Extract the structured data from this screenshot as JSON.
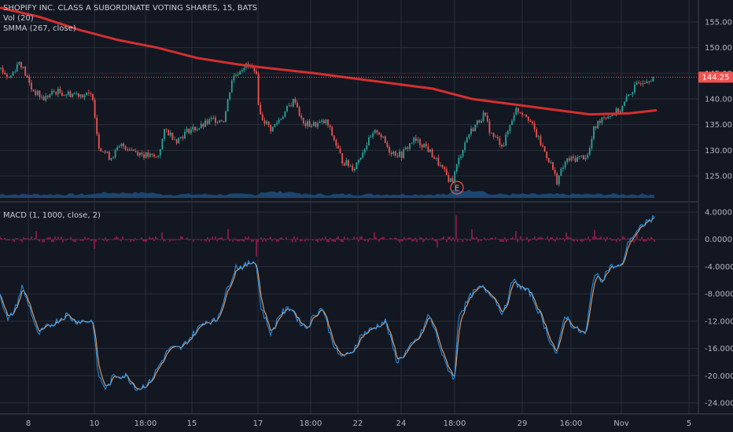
{
  "legend": {
    "title": "SHOPIFY INC. CLASS A SUBORDINATE VOTING SHARES, 15, BATS",
    "vol": "Vol (20)",
    "smma": "SMMA (267, close)",
    "macd": "MACD (1, 1000, close, 2)"
  },
  "earnings_marker": "E",
  "colors": {
    "background": "#131722",
    "grid": "#2a2e39",
    "up": "#26a69a",
    "down": "#ef5350",
    "smma": "#d32f2f",
    "volume": "#1e4f7a",
    "macd_line": "#2196f3",
    "signal_line": "#d49a6a",
    "histogram": "#e91e63",
    "price_tag": "#ef5350"
  },
  "chart_data": [
    {
      "type": "line",
      "name": "price-pane",
      "symbol": "SHOPIFY INC. CLASS A SUBORDINATE VOTING SHARES",
      "ylim": [
        121,
        157
      ],
      "yticks": [
        "125.00",
        "130.00",
        "135.00",
        "140.00",
        "145.00",
        "150.00",
        "155.00"
      ],
      "xticks": [
        "8",
        "10",
        "18:00",
        "15",
        "17",
        "18:00",
        "22",
        "24",
        "18:00",
        "29",
        "16:00",
        "Nov",
        "5"
      ],
      "last_price": "144.25",
      "close_path": [
        [
          0,
          146
        ],
        [
          12,
          144
        ],
        [
          25,
          147.5
        ],
        [
          40,
          142
        ],
        [
          55,
          140
        ],
        [
          70,
          141.5
        ],
        [
          85,
          141
        ],
        [
          100,
          141
        ],
        [
          118,
          140.5
        ],
        [
          125,
          131
        ],
        [
          140,
          128.5
        ],
        [
          155,
          131
        ],
        [
          170,
          130
        ],
        [
          185,
          129
        ],
        [
          200,
          128.5
        ],
        [
          210,
          134
        ],
        [
          225,
          132
        ],
        [
          240,
          134
        ],
        [
          255,
          134.5
        ],
        [
          270,
          136
        ],
        [
          285,
          136
        ],
        [
          295,
          144
        ],
        [
          310,
          146.5
        ],
        [
          325,
          146
        ],
        [
          330,
          137
        ],
        [
          345,
          134
        ],
        [
          360,
          137
        ],
        [
          375,
          140
        ],
        [
          385,
          135
        ],
        [
          400,
          135
        ],
        [
          415,
          135.5
        ],
        [
          425,
          132
        ],
        [
          435,
          128
        ],
        [
          450,
          126.5
        ],
        [
          465,
          131
        ],
        [
          480,
          134
        ],
        [
          495,
          130
        ],
        [
          510,
          129
        ],
        [
          525,
          132
        ],
        [
          540,
          131
        ],
        [
          555,
          128
        ],
        [
          570,
          124.5
        ],
        [
          575,
          124
        ],
        [
          585,
          129
        ],
        [
          595,
          133
        ],
        [
          605,
          135
        ],
        [
          615,
          137
        ],
        [
          625,
          133
        ],
        [
          640,
          131
        ],
        [
          655,
          138
        ],
        [
          670,
          137
        ],
        [
          685,
          132
        ],
        [
          700,
          127.5
        ],
        [
          708,
          124
        ],
        [
          720,
          128
        ],
        [
          735,
          128.5
        ],
        [
          748,
          129
        ],
        [
          755,
          134
        ],
        [
          765,
          136.5
        ],
        [
          778,
          137
        ],
        [
          790,
          138
        ],
        [
          800,
          141
        ],
        [
          815,
          143.5
        ],
        [
          830,
          144.25
        ]
      ],
      "smma_path": [
        [
          0,
          157.8
        ],
        [
          50,
          156
        ],
        [
          100,
          153.5
        ],
        [
          150,
          151.5
        ],
        [
          200,
          150
        ],
        [
          250,
          148
        ],
        [
          300,
          146.8
        ],
        [
          330,
          146.2
        ],
        [
          400,
          145
        ],
        [
          450,
          144
        ],
        [
          500,
          143
        ],
        [
          550,
          142
        ],
        [
          600,
          140
        ],
        [
          650,
          139
        ],
        [
          700,
          138
        ],
        [
          750,
          137
        ],
        [
          800,
          137.2
        ],
        [
          835,
          137.8
        ]
      ],
      "volume_level": 0.12
    },
    {
      "type": "line",
      "name": "macd-pane",
      "series": [
        {
          "name": "MACD",
          "role": "macd"
        },
        {
          "name": "Signal",
          "role": "signal"
        },
        {
          "name": "Histogram",
          "role": "histogram"
        }
      ],
      "ylim": [
        -25,
        5
      ],
      "yticks": [
        "4.0000",
        "0.0000",
        "-4.0000",
        "-8.0000",
        "-12.0000",
        "-16.0000",
        "-20.0000",
        "-24.0000"
      ],
      "macd_path": [
        [
          0,
          -8
        ],
        [
          10,
          -12
        ],
        [
          20,
          -10
        ],
        [
          28,
          -7
        ],
        [
          38,
          -10
        ],
        [
          48,
          -14
        ],
        [
          58,
          -13
        ],
        [
          72,
          -12
        ],
        [
          85,
          -11
        ],
        [
          95,
          -12
        ],
        [
          110,
          -12
        ],
        [
          118,
          -12
        ],
        [
          125,
          -20
        ],
        [
          135,
          -22
        ],
        [
          145,
          -20
        ],
        [
          160,
          -20
        ],
        [
          175,
          -22
        ],
        [
          190,
          -21
        ],
        [
          205,
          -18
        ],
        [
          215,
          -16
        ],
        [
          230,
          -16
        ],
        [
          245,
          -14
        ],
        [
          260,
          -12
        ],
        [
          275,
          -12
        ],
        [
          290,
          -7
        ],
        [
          300,
          -4
        ],
        [
          310,
          -4
        ],
        [
          325,
          -3
        ],
        [
          332,
          -10
        ],
        [
          345,
          -14
        ],
        [
          355,
          -11
        ],
        [
          370,
          -10
        ],
        [
          380,
          -12
        ],
        [
          390,
          -13
        ],
        [
          400,
          -11
        ],
        [
          410,
          -10
        ],
        [
          420,
          -14
        ],
        [
          430,
          -17
        ],
        [
          445,
          -17
        ],
        [
          460,
          -14
        ],
        [
          475,
          -13
        ],
        [
          490,
          -12
        ],
        [
          505,
          -18
        ],
        [
          520,
          -16
        ],
        [
          535,
          -14
        ],
        [
          545,
          -11
        ],
        [
          555,
          -14
        ],
        [
          565,
          -18
        ],
        [
          578,
          -20.5
        ],
        [
          583,
          -11
        ],
        [
          590,
          -10
        ],
        [
          600,
          -8
        ],
        [
          612,
          -7
        ],
        [
          625,
          -8
        ],
        [
          640,
          -11
        ],
        [
          652,
          -6
        ],
        [
          662,
          -7
        ],
        [
          675,
          -8
        ],
        [
          690,
          -12
        ],
        [
          700,
          -15
        ],
        [
          708,
          -17
        ],
        [
          718,
          -11
        ],
        [
          730,
          -13
        ],
        [
          745,
          -14
        ],
        [
          755,
          -5
        ],
        [
          765,
          -6
        ],
        [
          775,
          -4
        ],
        [
          790,
          -4
        ],
        [
          800,
          0
        ],
        [
          810,
          1
        ],
        [
          820,
          2.5
        ],
        [
          830,
          3
        ]
      ],
      "histogram_spikes": [
        [
          45,
          1.2
        ],
        [
          120,
          -1.4
        ],
        [
          205,
          1
        ],
        [
          290,
          1.5
        ],
        [
          325,
          -2.5
        ],
        [
          475,
          1
        ],
        [
          555,
          -1.2
        ],
        [
          580,
          3.5
        ],
        [
          600,
          1.5
        ],
        [
          655,
          1.2
        ],
        [
          720,
          1
        ],
        [
          755,
          1.4
        ],
        [
          810,
          1
        ]
      ]
    }
  ]
}
